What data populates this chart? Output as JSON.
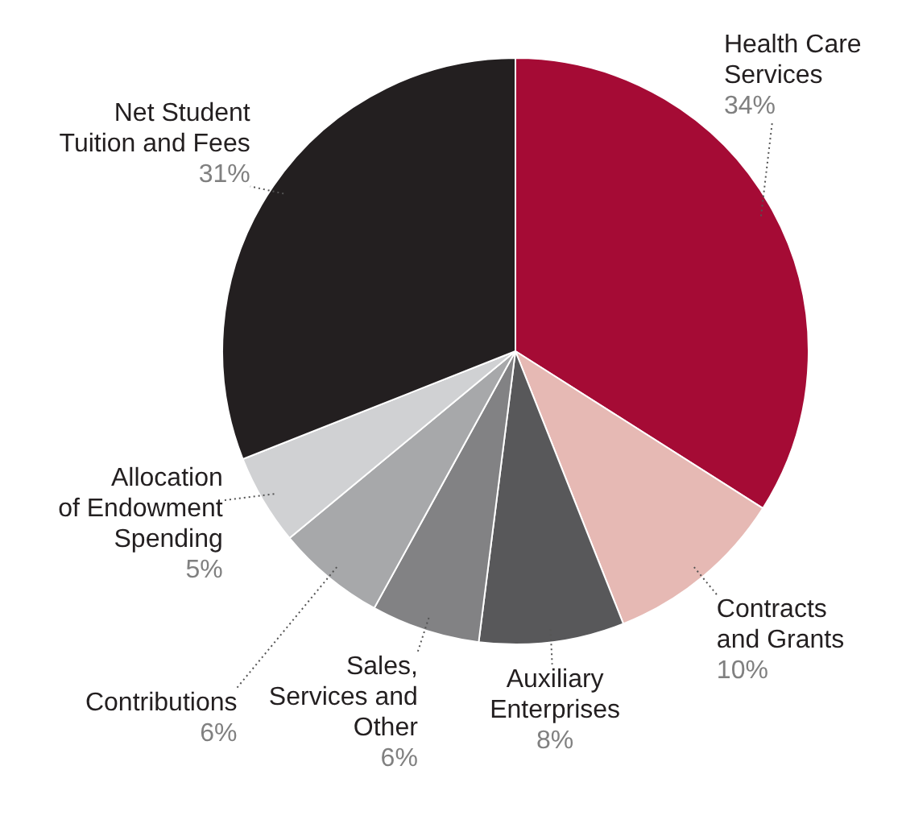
{
  "chart_data": {
    "type": "pie",
    "categories": [
      "Health Care\nServices",
      "Contracts\nand Grants",
      "Auxiliary\nEnterprises",
      "Sales,\nServices and\nOther",
      "Contributions",
      "Allocation\nof Endowment\nSpending",
      "Net Student\nTuition and Fees"
    ],
    "values": [
      34,
      10,
      8,
      6,
      6,
      5,
      31
    ],
    "value_labels": [
      "34%",
      "10%",
      "8%",
      "6%",
      "6%",
      "5%",
      "31%"
    ],
    "colors": [
      "#a50b35",
      "#e6b9b4",
      "#58585a",
      "#828284",
      "#a7a8aa",
      "#d0d1d3",
      "#231f20"
    ]
  }
}
